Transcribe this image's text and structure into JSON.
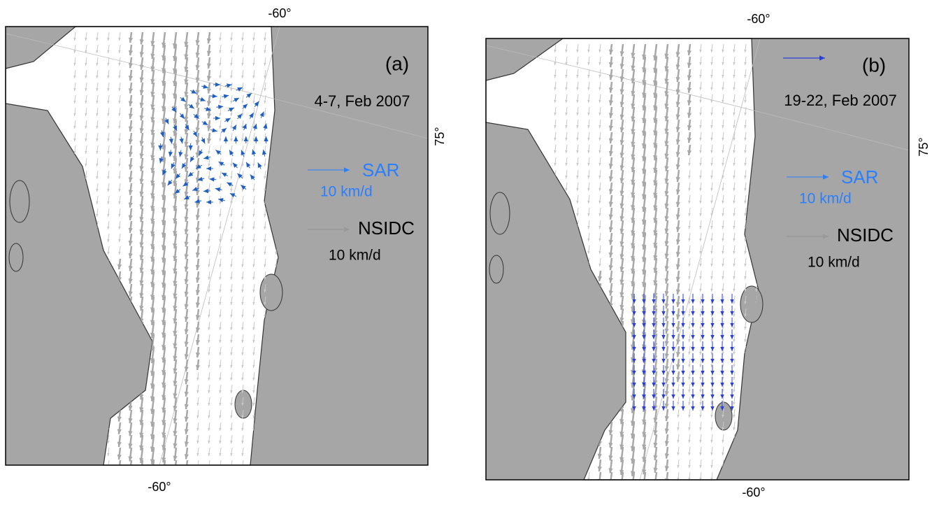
{
  "panels": [
    {
      "label": "(a)",
      "date": "4-7, Feb 2007",
      "lon_top": "-60°",
      "lon_bottom": "-60°",
      "lat": "75°",
      "legend": [
        {
          "name": "SAR",
          "speed": "10 km/d"
        },
        {
          "name": "NSIDC",
          "speed": "10 km/d"
        }
      ]
    },
    {
      "label": "(b)",
      "date": "19-22, Feb 2007",
      "lon_top": "-60°",
      "lon_bottom": "-60°",
      "lat": "75°",
      "legend": [
        {
          "name": "SAR",
          "speed": "10 km/d"
        },
        {
          "name": "NSIDC",
          "speed": "10 km/d"
        }
      ]
    }
  ]
}
